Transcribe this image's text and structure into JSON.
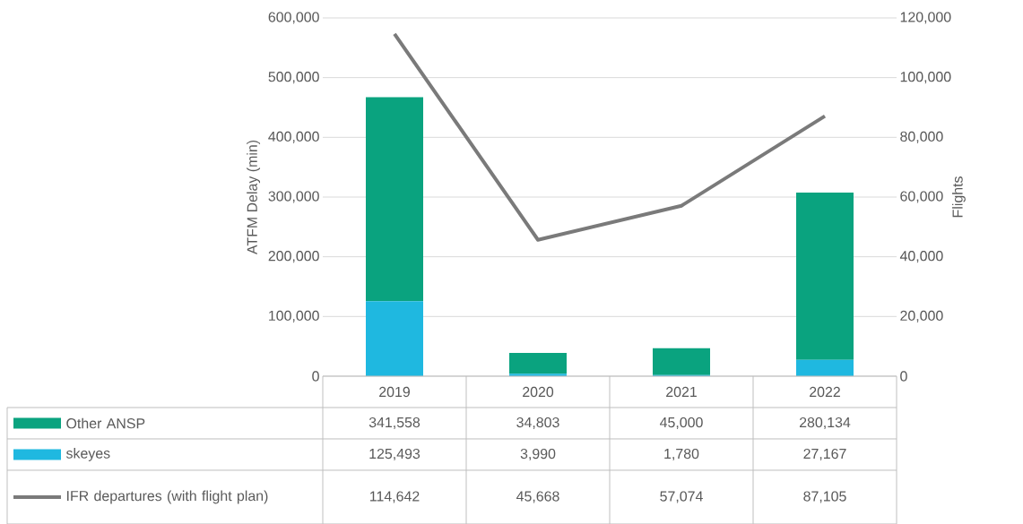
{
  "chart_data": {
    "type": "bar",
    "stacked": true,
    "categories": [
      "2019",
      "2020",
      "2021",
      "2022"
    ],
    "ylabel": "ATFM Delay (min)",
    "y2label": "Flights",
    "ylim": [
      0,
      600000
    ],
    "yticks": [
      0,
      {
        "value": 100000,
        "label": "100,000"
      },
      {
        "value": 200000,
        "label": "200,000"
      },
      {
        "value": 300000,
        "label": "300,000"
      },
      {
        "value": 400000,
        "label": "400,000"
      },
      {
        "value": 500000,
        "label": "500,000"
      },
      {
        "value": 600000,
        "label": "600,000"
      }
    ],
    "y2lim": [
      0,
      120000
    ],
    "y2ticks": [
      0,
      {
        "value": 20000,
        "label": "20,000"
      },
      {
        "value": 40000,
        "label": "40,000"
      },
      {
        "value": 60000,
        "label": "60,000"
      },
      {
        "value": 80000,
        "label": "80,000"
      },
      {
        "value": 100000,
        "label": "100,000"
      },
      {
        "value": 120000,
        "label": "120,000"
      }
    ],
    "grid": "y",
    "legend": "bottom",
    "series": [
      {
        "name": "skeyes",
        "color": "#1fb8e0",
        "values": [
          125493,
          3990,
          1780,
          27167
        ],
        "value_labels": [
          "125,493",
          "3,990",
          "1,780",
          "27,167"
        ]
      },
      {
        "name": "Other ANSP",
        "color": "#0aa37f",
        "values": [
          341558,
          34803,
          45000,
          280134
        ],
        "value_labels": [
          "341,558",
          "34,803",
          "45,000",
          "280,134"
        ]
      },
      {
        "name": "IFR departures (with flight plan)",
        "type": "line",
        "axis": "y2",
        "color": "#7a7a7a",
        "values": [
          114642,
          45668,
          57074,
          87105
        ],
        "value_labels": [
          "114,642",
          "45,668",
          "57,074",
          "87,105"
        ]
      }
    ]
  }
}
